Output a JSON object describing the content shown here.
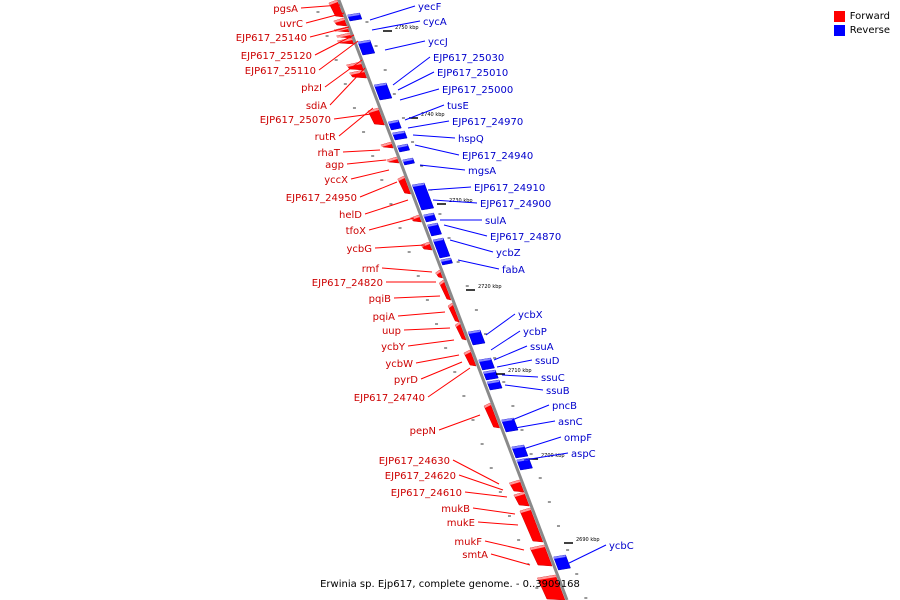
{
  "legend": {
    "forward_label": "Forward",
    "reverse_label": "Reverse",
    "forward_color": "#ff0000",
    "reverse_color": "#0000ff"
  },
  "caption": "Erwinia sp. Ejp617, complete genome. - 0..3909168",
  "ticks": [
    "2750 kbp",
    "2740 kbp",
    "2730 kbp",
    "2720 kbp",
    "2710 kbp",
    "2700 kbp",
    "2690 kbp"
  ],
  "forward_genes": [
    "pgsA",
    "uvrC",
    "EJP617_25140",
    "EJP617_25120",
    "EJP617_25110",
    "phzI",
    "sdiA",
    "EJP617_25070",
    "rutR",
    "rhaT",
    "agp",
    "yccX",
    "EJP617_24950",
    "helD",
    "tfoX",
    "ycbG",
    "rmf",
    "EJP617_24820",
    "pqiB",
    "pqiA",
    "uup",
    "ycbY",
    "ycbW",
    "pyrD",
    "EJP617_24740",
    "pepN",
    "EJP617_24630",
    "EJP617_24620",
    "EJP617_24610",
    "mukB",
    "mukE",
    "mukF",
    "smtA"
  ],
  "reverse_genes": [
    "yecF",
    "cycA",
    "yccJ",
    "EJP617_25030",
    "EJP617_25010",
    "EJP617_25000",
    "tusE",
    "EJP617_24970",
    "hspQ",
    "EJP617_24940",
    "mgsA",
    "EJP617_24910",
    "EJP617_24900",
    "sulA",
    "EJP617_24870",
    "ycbZ",
    "fabA",
    "ycbX",
    "ycbP",
    "ssuA",
    "ssuD",
    "ssuC",
    "ssuB",
    "pncB",
    "asnC",
    "ompF",
    "aspC",
    "ycbC"
  ]
}
